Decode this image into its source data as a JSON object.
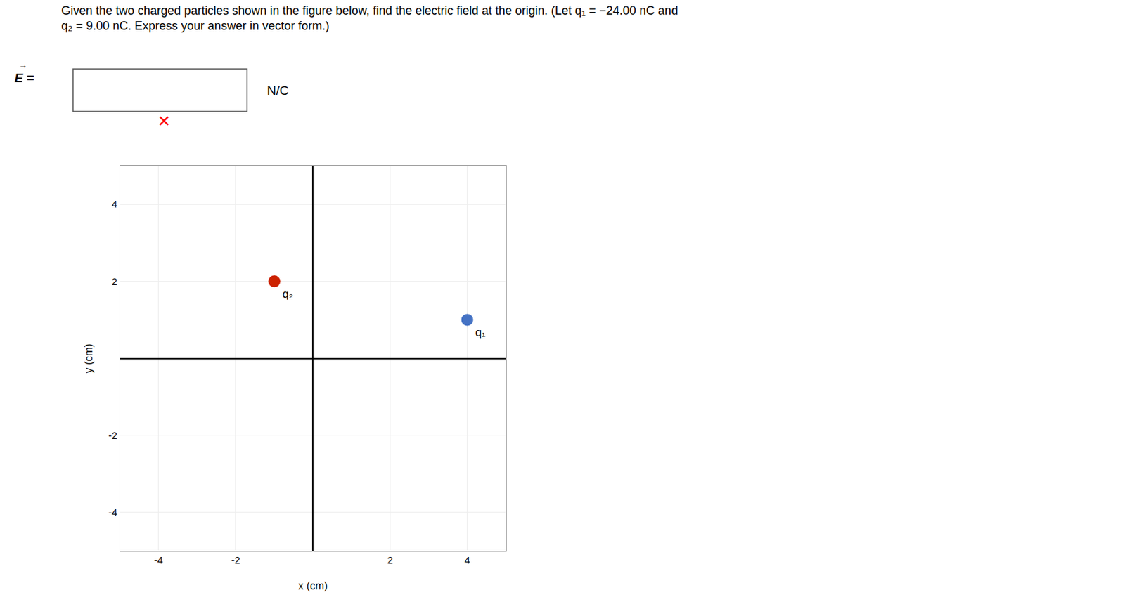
{
  "chart_data": {
    "type": "scatter",
    "title": "Given the two charged particles shown in the figure below, find the electric field at the origin. (Let q₁ = −24.00 nC and",
    "subtitle": "q₂ = 9.00 nC. Express your answer in vector form.)",
    "annotations": [
      {
        "text": "→"
      },
      {
        "text": "E ="
      },
      {
        "text": "N/C"
      },
      {
        "text": "✕",
        "color": "#ff0000"
      }
    ],
    "x_label": "x (cm)",
    "y_label": "y (cm)",
    "xlim": [
      -5,
      5
    ],
    "ylim": [
      -5,
      5
    ],
    "xticks": [
      -4,
      -2,
      2,
      4
    ],
    "yticks": [
      -4,
      -2,
      2,
      4
    ],
    "grid": true,
    "series": [
      {
        "name": "q₂",
        "color": "#cc2200",
        "x": [
          -1
        ],
        "y": [
          2
        ]
      },
      {
        "name": "q₁",
        "color": "#4472c4",
        "x": [
          4
        ],
        "y": [
          1
        ]
      }
    ]
  }
}
